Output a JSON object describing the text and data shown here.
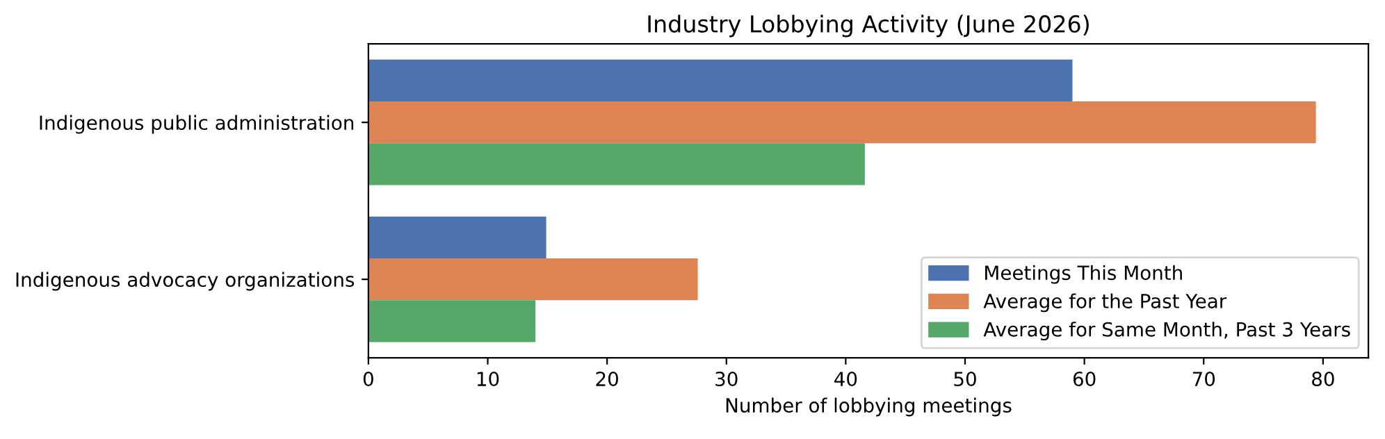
{
  "chart_data": {
    "type": "bar",
    "orientation": "horizontal",
    "title": "Industry Lobbying Activity (June 2026)",
    "xlabel": "Number of lobbying meetings",
    "categories": [
      "Indigenous public administration",
      "Indigenous advocacy organizations"
    ],
    "series": [
      {
        "name": "Meetings This Month",
        "color": "#4c72b0",
        "values": [
          59.0,
          14.9
        ]
      },
      {
        "name": "Average for the Past Year",
        "color": "#dd8452",
        "values": [
          79.4,
          27.6
        ]
      },
      {
        "name": "Average for Same Month, Past 3 Years",
        "color": "#55a868",
        "values": [
          41.6,
          14.0
        ]
      }
    ],
    "xlim": [
      0,
      83.8
    ],
    "xticks": [
      0,
      10,
      20,
      30,
      40,
      50,
      60,
      70,
      80
    ],
    "legend": "lower right",
    "grid": false
  }
}
